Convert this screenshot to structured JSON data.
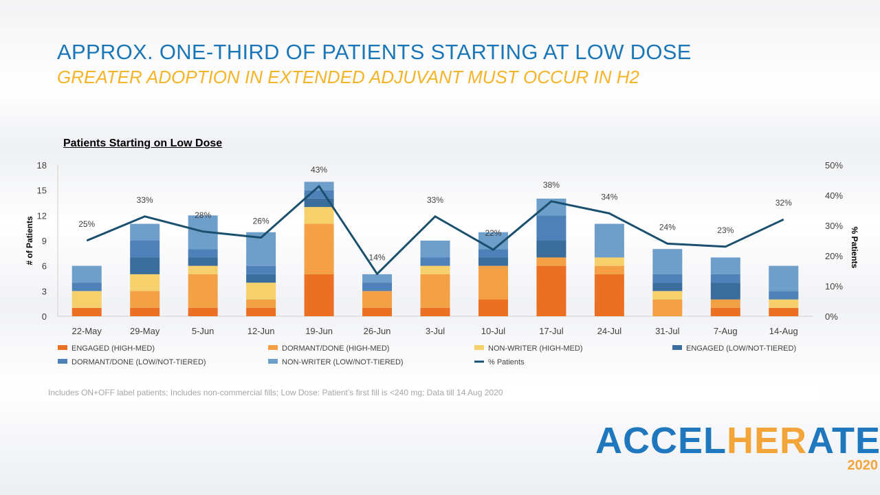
{
  "slide": {
    "title": "APPROX. ONE-THIRD OF PATIENTS STARTING AT LOW DOSE",
    "subtitle": "GREATER ADOPTION IN EXTENDED ADJUVANT MUST OCCUR IN H2",
    "footnote": "Includes ON+OFF label patients; Includes non-commercial fills; Low Dose: Patient’s first fill is <240 mg; Data till 14 Aug 2020",
    "logo": {
      "part1": "ACCEL",
      "part2": "HER",
      "part3": "A",
      "part4": "TE",
      "year": "2020"
    }
  },
  "chart_data": {
    "type": "bar",
    "stacked": true,
    "title": "Patients Starting on Low Dose",
    "ylabel": "# of Patients",
    "y2label": "% Patients",
    "ylim": [
      0,
      18
    ],
    "yticks": [
      0,
      3,
      6,
      9,
      12,
      15,
      18
    ],
    "y2lim": [
      0,
      50
    ],
    "y2ticks": [
      "0%",
      "10%",
      "20%",
      "30%",
      "40%",
      "50%"
    ],
    "grid": false,
    "legend_position": "bottom",
    "categories": [
      "22-May",
      "29-May",
      "5-Jun",
      "12-Jun",
      "19-Jun",
      "26-Jun",
      "3-Jul",
      "10-Jul",
      "17-Jul",
      "24-Jul",
      "31-Jul",
      "7-Aug",
      "14-Aug"
    ],
    "series": [
      {
        "name": "ENGAGED (HIGH-MED)",
        "color": "#ec7024",
        "values": [
          1,
          1,
          1,
          1,
          5,
          1,
          1,
          2,
          6,
          5,
          0,
          1,
          1
        ]
      },
      {
        "name": "DORMANT/DONE (HIGH-MED)",
        "color": "#f4a045",
        "values": [
          0,
          2,
          4,
          1,
          6,
          2,
          4,
          4,
          1,
          1,
          2,
          1,
          0
        ]
      },
      {
        "name": "NON-WRITER (HIGH-MED)",
        "color": "#f5d06b",
        "values": [
          2,
          2,
          1,
          2,
          2,
          0,
          1,
          0,
          0,
          1,
          1,
          0,
          1
        ]
      },
      {
        "name": "ENGAGED (LOW/NOT-TIERED)",
        "color": "#3a6c9c",
        "values": [
          0,
          2,
          1,
          1,
          1,
          0,
          0,
          1,
          2,
          0,
          1,
          2,
          0
        ]
      },
      {
        "name": "DORMANT/DONE (LOW/NOT-TIERED)",
        "color": "#4f81b9",
        "values": [
          1,
          2,
          1,
          1,
          1,
          1,
          1,
          1,
          3,
          0,
          1,
          1,
          1
        ]
      },
      {
        "name": "NON-WRITER (LOW/NOT-TIERED)",
        "color": "#6e9fcb",
        "values": [
          2,
          2,
          4,
          4,
          1,
          1,
          2,
          2,
          2,
          4,
          3,
          2,
          3
        ]
      }
    ],
    "line_series": {
      "name": "% Patients",
      "color": "#1a4f6e",
      "values": [
        25,
        33,
        28,
        26,
        43,
        14,
        33,
        22,
        38,
        34,
        24,
        23,
        32
      ],
      "labels": [
        "25%",
        "33%",
        "28%",
        "26%",
        "43%",
        "14%",
        "33%",
        "22%",
        "38%",
        "34%",
        "24%",
        "23%",
        "32%"
      ]
    }
  }
}
